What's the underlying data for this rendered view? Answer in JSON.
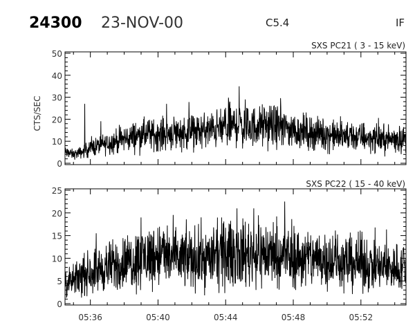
{
  "header": {
    "id": "24300",
    "date": "23-NOV-00",
    "class": "C5.4",
    "flag": "IF"
  },
  "chart_data": [
    {
      "type": "line",
      "title": "SXS PC21  (  3 - 15 keV)",
      "ylabel": "CTS/SEC",
      "xlabel": "",
      "ylim": [
        0,
        50
      ],
      "yticks": [
        "0",
        "10",
        "20",
        "30",
        "40",
        "50"
      ],
      "xlim": [
        "05:34:30",
        "05:54:40"
      ],
      "xticks": [],
      "grid": false,
      "series": [
        {
          "x": [
            "05:34:30",
            "05:35:00",
            "05:35:30",
            "05:36:00",
            "05:37:00",
            "05:38:00",
            "05:39:00",
            "05:40:00",
            "05:41:00",
            "05:42:00",
            "05:43:00",
            "05:44:00",
            "05:44:48",
            "05:45:00",
            "05:46:00",
            "05:47:00",
            "05:48:00",
            "05:49:00",
            "05:50:00",
            "05:51:00",
            "05:52:00",
            "05:53:00",
            "05:54:00",
            "05:54:40"
          ],
          "y": [
            5,
            4,
            5,
            7,
            9,
            11,
            13,
            13,
            14,
            14,
            15,
            16,
            18,
            16,
            17,
            17,
            15,
            14,
            13,
            12,
            12,
            11,
            11,
            11
          ],
          "spikes": [
            {
              "x": "05:35:40",
              "y": 27
            },
            {
              "x": "05:44:48",
              "y": 35
            },
            {
              "x": "05:44:15",
              "y": 28
            },
            {
              "x": "05:45:10",
              "y": 29
            },
            {
              "x": "05:40:30",
              "y": 27
            }
          ]
        }
      ]
    },
    {
      "type": "line",
      "title": "SXS PC22  ( 15 - 40 keV)",
      "ylabel": "",
      "xlabel": "",
      "ylim": [
        0,
        25
      ],
      "yticks": [
        "0",
        "5",
        "10",
        "15",
        "20",
        "25"
      ],
      "xlim": [
        "05:34:30",
        "05:54:40"
      ],
      "xticks": [
        "05:36",
        "05:40",
        "05:44",
        "05:48",
        "05:52"
      ],
      "grid": false,
      "series": [
        {
          "x": [
            "05:34:30",
            "05:35:00",
            "05:36:00",
            "05:37:00",
            "05:38:00",
            "05:39:00",
            "05:40:00",
            "05:41:00",
            "05:42:00",
            "05:43:00",
            "05:44:00",
            "05:45:00",
            "05:46:00",
            "05:47:00",
            "05:48:00",
            "05:49:00",
            "05:50:00",
            "05:51:00",
            "05:52:00",
            "05:53:00",
            "05:54:00",
            "05:54:40"
          ],
          "y": [
            4,
            5,
            7,
            8,
            9,
            10,
            11,
            10,
            10,
            10,
            11,
            11,
            11,
            11,
            10,
            10,
            10,
            9,
            9,
            8,
            8,
            8
          ],
          "spikes": [
            {
              "x": "05:47:30",
              "y": 22.5
            },
            {
              "x": "05:44:40",
              "y": 21
            },
            {
              "x": "05:45:40",
              "y": 21
            },
            {
              "x": "05:39:00",
              "y": 19
            }
          ]
        }
      ]
    }
  ]
}
